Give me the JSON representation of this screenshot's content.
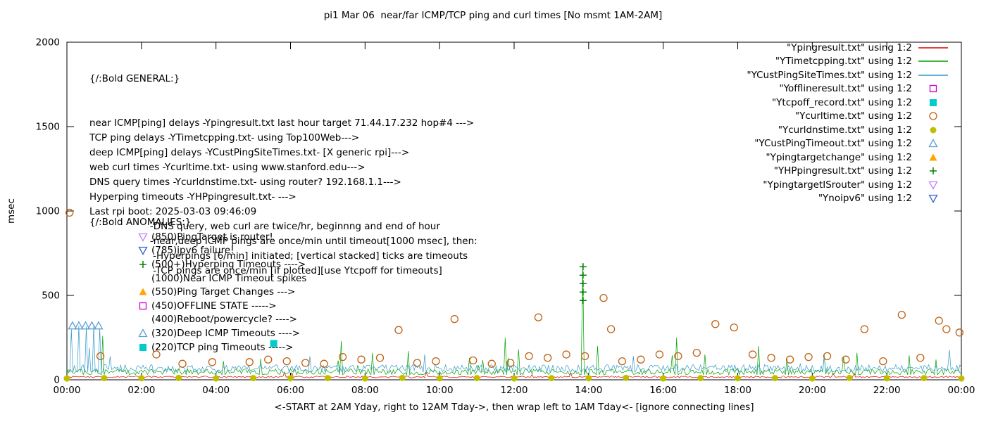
{
  "title": "pi1 Mar 06  near/far ICMP/TCP ping and curl times [No msmt 1AM-2AM]",
  "axes": {
    "y_label": "msec",
    "y_ticks": [
      0,
      500,
      1000,
      1500,
      2000
    ],
    "x_tick_labels": [
      "00:00",
      "02:00",
      "04:00",
      "06:00",
      "08:00",
      "10:00",
      "12:00",
      "14:00",
      "16:00",
      "18:00",
      "20:00",
      "22:00",
      "00:00"
    ],
    "x_tick_hours": [
      0,
      2,
      4,
      6,
      8,
      10,
      12,
      14,
      16,
      18,
      20,
      22,
      24
    ],
    "x_label": "<-START at 2AM Yday, right to 12AM Tday->, then wrap left to 1AM Tday<- [ignore connecting lines]"
  },
  "legend": {
    "items": [
      {
        "label": "\"Ypingresult.txt\" using 1:2",
        "marker": "line",
        "color": "#dd0000"
      },
      {
        "label": "\"YTimetcpping.txt\" using 1:2",
        "marker": "line",
        "color": "#00a000"
      },
      {
        "label": "\"YCustPingSiteTimes.txt\" using 1:2",
        "marker": "line",
        "color": "#3399cc"
      },
      {
        "label": "\"Yofflineresult.txt\" using 1:2",
        "marker": "square-open",
        "color": "#d000d0"
      },
      {
        "label": "\"Ytcpoff_record.txt\" using 1:2",
        "marker": "square-filled",
        "color": "#00cccc"
      },
      {
        "label": "\"Ycurltime.txt\" using 1:2",
        "marker": "circle-open",
        "color": "#c06010"
      },
      {
        "label": "\"Ycurldnstime.txt\" using 1:2",
        "marker": "circle-filled",
        "color": "#bfbf00"
      },
      {
        "label": "\"YCustPingTimeout.txt\" using 1:2",
        "marker": "triangle-open",
        "color": "#5e9fd8"
      },
      {
        "label": "\"Ypingtargetchange\" using 1:2",
        "marker": "triangle-filled",
        "color": "#ffa500"
      },
      {
        "label": "\"YHPpingresult.txt\" using 1:2",
        "marker": "plus",
        "color": "#008000"
      },
      {
        "label": "\"YpingtargetISrouter\" using 1:2",
        "marker": "nabla-open",
        "color": "#c080ff"
      },
      {
        "label": "\"Ynoipv6\" using 1:2",
        "marker": "nabla-open",
        "color": "#3a5fcd"
      }
    ]
  },
  "general": {
    "heading": "{/:Bold GENERAL:}",
    "lines": [
      "near ICMP[ping] delays -Ypingresult.txt last hour target 71.44.17.232 hop#4 --->",
      "TCP ping delays -YTimetcpping.txt- using Top100Web--->",
      "deep ICMP[ping] delays -YCustPingSiteTimes.txt- [X generic rpi]--->",
      "web curl times -Ycurltime.txt- using www.stanford.edu--->",
      "DNS query times -Ycurldnstime.txt- using router? 192.168.1.1--->",
      "Hyperping timeouts -YHPpingresult.txt- --->",
      "Last rpi boot: 2025-03-03 09:46:09",
      "                    -DNS query, web curl are twice/hr, beginnng and end of hour",
      "                    -near,deep ICMP pings are once/min until timeout[1000 msec], then:",
      "                     -Hyperpings [6/min] initiated; [vertical stacked] ticks are timeouts",
      "                     -TCP pings are once/min [if plotted][use Ytcpoff for timeouts]"
    ]
  },
  "anomalies": {
    "heading": "{/:Bold ANOMALIES:}",
    "items": [
      {
        "marker": "nabla-open",
        "color": "#c080ff",
        "text": "(850)PingTarget is router!"
      },
      {
        "marker": "nabla-open",
        "color": "#3a5fcd",
        "text": "(785)ipv6 failure!"
      },
      {
        "marker": "plus",
        "color": "#008000",
        "text": "(500+)Hyperping Timeouts ---->"
      },
      {
        "marker": null,
        "color": null,
        "text": "(1000)Near ICMP Timeout spikes"
      },
      {
        "marker": "triangle-filled",
        "color": "#ffa500",
        "text": "(550)Ping Target Changes --->"
      },
      {
        "marker": "square-open",
        "color": "#d000d0",
        "text": "(450)OFFLINE STATE ----->"
      },
      {
        "marker": null,
        "color": null,
        "text": "(400)Reboot/powercycle? ---->"
      },
      {
        "marker": "triangle-open",
        "color": "#5e9fd8",
        "text": "(320)Deep ICMP Timeouts ---->"
      },
      {
        "marker": "square-filled",
        "color": "#00cccc",
        "text": "(220)TCP ping Timeouts ----->"
      }
    ]
  },
  "chart_data": {
    "type": "line+scatter",
    "title": "pi1 Mar 06  near/far ICMP/TCP ping and curl times [No msmt 1AM-2AM]",
    "xlabel": "<-START at 2AM Yday, right to 12AM Tday->, then wrap left to 1AM Tday<- [ignore connecting lines]",
    "ylabel": "msec",
    "x_range_hours": [
      0,
      24
    ],
    "y_range_msec": [
      0,
      2000
    ],
    "grid": false,
    "legend_position": "top-right",
    "line_series": [
      {
        "name": "Ypingresult.txt",
        "color": "#dd0000",
        "baseline": 12,
        "noise": 10,
        "spikes": []
      },
      {
        "name": "YTimetcpping.txt",
        "color": "#00a000",
        "baseline": 30,
        "noise": 35,
        "spikes": [
          [
            0.95,
            260
          ],
          [
            4.2,
            110
          ],
          [
            5.2,
            125
          ],
          [
            7.35,
            230
          ],
          [
            8.2,
            160
          ],
          [
            9.15,
            170
          ],
          [
            10.8,
            130
          ],
          [
            11.75,
            250
          ],
          [
            12.1,
            180
          ],
          [
            13.85,
            690
          ],
          [
            14.25,
            200
          ],
          [
            16.35,
            250
          ],
          [
            17.1,
            150
          ],
          [
            18.55,
            200
          ],
          [
            19.3,
            130
          ],
          [
            21.2,
            160
          ],
          [
            22.6,
            145
          ],
          [
            23.3,
            120
          ]
        ]
      },
      {
        "name": "YCustPingSiteTimes.txt",
        "color": "#3399cc",
        "baseline": 45,
        "noise": 45,
        "spikes": [
          [
            0.12,
            300
          ],
          [
            0.3,
            320
          ],
          [
            0.5,
            315
          ],
          [
            0.7,
            325
          ],
          [
            0.88,
            305
          ],
          [
            6.5,
            140
          ],
          [
            9.6,
            150
          ],
          [
            15.2,
            140
          ],
          [
            20.3,
            150
          ]
        ]
      }
    ],
    "scatter_series": [
      {
        "name": "Ycurltime.txt",
        "marker": "circle-open",
        "color": "#c06010",
        "points": [
          [
            0.07,
            990
          ],
          [
            0.9,
            140
          ],
          [
            2.4,
            150
          ],
          [
            3.1,
            95
          ],
          [
            3.9,
            105
          ],
          [
            4.9,
            105
          ],
          [
            5.4,
            120
          ],
          [
            5.9,
            110
          ],
          [
            6.4,
            100
          ],
          [
            6.9,
            95
          ],
          [
            7.4,
            135
          ],
          [
            7.9,
            120
          ],
          [
            8.4,
            130
          ],
          [
            8.9,
            295
          ],
          [
            9.4,
            100
          ],
          [
            9.9,
            110
          ],
          [
            10.4,
            360
          ],
          [
            10.9,
            115
          ],
          [
            11.4,
            95
          ],
          [
            11.9,
            100
          ],
          [
            12.4,
            140
          ],
          [
            12.65,
            370
          ],
          [
            12.9,
            130
          ],
          [
            13.4,
            150
          ],
          [
            13.9,
            140
          ],
          [
            14.4,
            485
          ],
          [
            14.6,
            300
          ],
          [
            14.9,
            110
          ],
          [
            15.4,
            120
          ],
          [
            15.9,
            150
          ],
          [
            16.4,
            140
          ],
          [
            16.9,
            160
          ],
          [
            17.4,
            330
          ],
          [
            17.9,
            310
          ],
          [
            18.4,
            150
          ],
          [
            18.9,
            130
          ],
          [
            19.4,
            120
          ],
          [
            19.9,
            135
          ],
          [
            20.4,
            140
          ],
          [
            20.9,
            120
          ],
          [
            21.4,
            300
          ],
          [
            21.9,
            110
          ],
          [
            22.4,
            385
          ],
          [
            22.9,
            130
          ],
          [
            23.4,
            350
          ],
          [
            23.6,
            300
          ],
          [
            23.95,
            280
          ]
        ]
      },
      {
        "name": "Ycurldnstime.txt",
        "marker": "circle-filled",
        "color": "#bfbf00",
        "points": [
          [
            0,
            8
          ],
          [
            1,
            10
          ],
          [
            2,
            9
          ],
          [
            3,
            11
          ],
          [
            4,
            8
          ],
          [
            5,
            10
          ],
          [
            6,
            9
          ],
          [
            7,
            10
          ],
          [
            8,
            8
          ],
          [
            9,
            11
          ],
          [
            10,
            9
          ],
          [
            11,
            10
          ],
          [
            12,
            8
          ],
          [
            13,
            10
          ],
          [
            14,
            9
          ],
          [
            15,
            11
          ],
          [
            16,
            8
          ],
          [
            17,
            10
          ],
          [
            18,
            9
          ],
          [
            19,
            10
          ],
          [
            20,
            8
          ],
          [
            21,
            11
          ],
          [
            22,
            9
          ],
          [
            23,
            10
          ],
          [
            24,
            8
          ]
        ]
      },
      {
        "name": "YCustPingTimeout.txt",
        "marker": "triangle-open",
        "color": "#5e9fd8",
        "points": [
          [
            0.15,
            320
          ],
          [
            0.32,
            320
          ],
          [
            0.5,
            320
          ],
          [
            0.67,
            320
          ],
          [
            0.85,
            320
          ]
        ]
      },
      {
        "name": "Ytcpoff_record.txt",
        "marker": "square-filled",
        "color": "#00cccc",
        "points": [
          [
            5.55,
            215
          ]
        ]
      },
      {
        "name": "YHPpingresult.txt",
        "marker": "plus",
        "color": "#008000",
        "points": [
          [
            13.85,
            470
          ],
          [
            13.85,
            520
          ],
          [
            13.85,
            570
          ],
          [
            13.85,
            620
          ],
          [
            13.85,
            670
          ]
        ]
      }
    ]
  }
}
